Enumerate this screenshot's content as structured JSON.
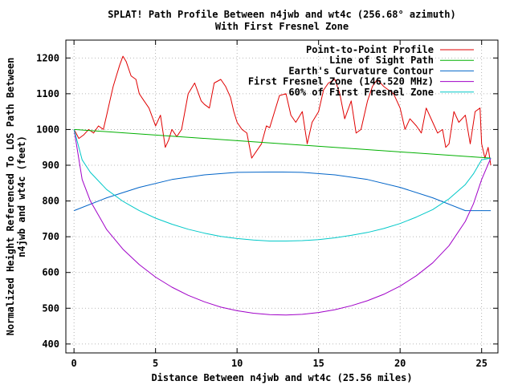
{
  "chart_data": {
    "type": "line",
    "title": "SPLAT! Path Profile Between n4jwb and wt4c (256.68° azimuth)",
    "subtitle": "With First Fresnel Zone",
    "xlabel": "Distance Between n4jwb and wt4c (25.56 miles)",
    "ylabel_line1": "Normalized Height Referenced To LOS Path Between",
    "ylabel_line2": "n4jwb and wt4c (feet)",
    "xlim": [
      -0.5,
      26
    ],
    "ylim": [
      375,
      1250
    ],
    "x_ticks": [
      0,
      5,
      10,
      15,
      20,
      25
    ],
    "y_ticks": [
      400,
      500,
      600,
      700,
      800,
      900,
      1000,
      1100,
      1200
    ],
    "x_tick_labels": [
      "0",
      "5",
      "10",
      "15",
      "20",
      "25"
    ],
    "y_tick_labels": [
      "400",
      "500",
      "600",
      "700",
      "800",
      "900",
      "1000",
      "1100",
      "1200"
    ],
    "grid": true,
    "legend_position": "top-right",
    "series": [
      {
        "name": "Point-to-Point Profile",
        "color": "#e00000",
        "x": [
          0,
          0.3,
          0.6,
          0.9,
          1.2,
          1.5,
          1.8,
          2.0,
          2.2,
          2.4,
          2.6,
          2.8,
          3.0,
          3.2,
          3.5,
          3.8,
          4.0,
          4.3,
          4.6,
          5.0,
          5.3,
          5.6,
          5.8,
          6.0,
          6.3,
          6.6,
          7.0,
          7.4,
          7.8,
          8.0,
          8.3,
          8.6,
          9.0,
          9.3,
          9.6,
          9.8,
          10.0,
          10.3,
          10.6,
          10.9,
          11.2,
          11.5,
          11.8,
          12.0,
          12.3,
          12.6,
          13.0,
          13.3,
          13.6,
          14.0,
          14.3,
          14.6,
          15.0,
          15.3,
          15.6,
          16.0,
          16.3,
          16.6,
          17.0,
          17.3,
          17.6,
          18.0,
          18.3,
          18.6,
          19.0,
          19.3,
          19.6,
          20.0,
          20.3,
          20.6,
          21.0,
          21.3,
          21.6,
          22.0,
          22.3,
          22.6,
          22.8,
          23.0,
          23.3,
          23.6,
          24.0,
          24.3,
          24.6,
          24.9,
          25.0,
          25.2,
          25.4,
          25.56
        ],
        "y": [
          1000,
          975,
          985,
          1000,
          990,
          1010,
          1000,
          1040,
          1080,
          1120,
          1150,
          1180,
          1205,
          1190,
          1150,
          1140,
          1100,
          1080,
          1060,
          1010,
          1040,
          950,
          970,
          1000,
          980,
          1000,
          1100,
          1130,
          1080,
          1070,
          1060,
          1130,
          1140,
          1120,
          1090,
          1050,
          1020,
          1000,
          990,
          920,
          940,
          960,
          1010,
          1005,
          1050,
          1095,
          1100,
          1040,
          1020,
          1050,
          960,
          1020,
          1050,
          1110,
          1130,
          1140,
          1100,
          1030,
          1080,
          990,
          1000,
          1080,
          1120,
          1140,
          1120,
          1110,
          1100,
          1060,
          1000,
          1030,
          1010,
          990,
          1060,
          1020,
          990,
          1000,
          950,
          960,
          1050,
          1020,
          1040,
          960,
          1050,
          1060,
          960,
          920,
          950,
          900
        ]
      },
      {
        "name": "Line of Sight Path",
        "color": "#00b000",
        "x": [
          0,
          25.56
        ],
        "y": [
          1000,
          920
        ]
      },
      {
        "name": "Earth's Curvature Contour",
        "color": "#0064c8",
        "x": [
          0,
          2,
          4,
          6,
          8,
          10,
          12,
          12.78,
          14,
          16,
          18,
          20,
          22,
          24,
          25.56
        ],
        "y": [
          773,
          809,
          838,
          860,
          873,
          880,
          881,
          881,
          880,
          873,
          860,
          838,
          809,
          773,
          773
        ]
      },
      {
        "name": "First Fresnel Zone (146.520 MHz)",
        "color": "#a000c8",
        "x": [
          0,
          0.5,
          1,
          2,
          3,
          4,
          5,
          6,
          7,
          8,
          9,
          10,
          11,
          12,
          13,
          14,
          15,
          16,
          17,
          18,
          19,
          20,
          21,
          22,
          23,
          24,
          24.5,
          25,
          25.56
        ],
        "y": [
          1000,
          860,
          800,
          720,
          665,
          622,
          587,
          559,
          536,
          518,
          503,
          493,
          486,
          482,
          481,
          483,
          488,
          496,
          507,
          521,
          539,
          562,
          591,
          627,
          675,
          743,
          792,
          860,
          920
        ]
      },
      {
        "name": "60% of First Fresnel Zone",
        "color": "#00c8c8",
        "x": [
          0,
          0.5,
          1,
          2,
          3,
          4,
          5,
          6,
          7,
          8,
          9,
          10,
          11,
          12,
          13,
          14,
          15,
          16,
          17,
          18,
          19,
          20,
          21,
          22,
          23,
          24,
          24.5,
          25,
          25.56
        ],
        "y": [
          1000,
          915,
          880,
          832,
          799,
          773,
          752,
          735,
          721,
          710,
          701,
          695,
          691,
          688,
          688,
          689,
          692,
          697,
          704,
          712,
          723,
          737,
          755,
          776,
          806,
          846,
          876,
          915,
          920
        ]
      }
    ]
  }
}
